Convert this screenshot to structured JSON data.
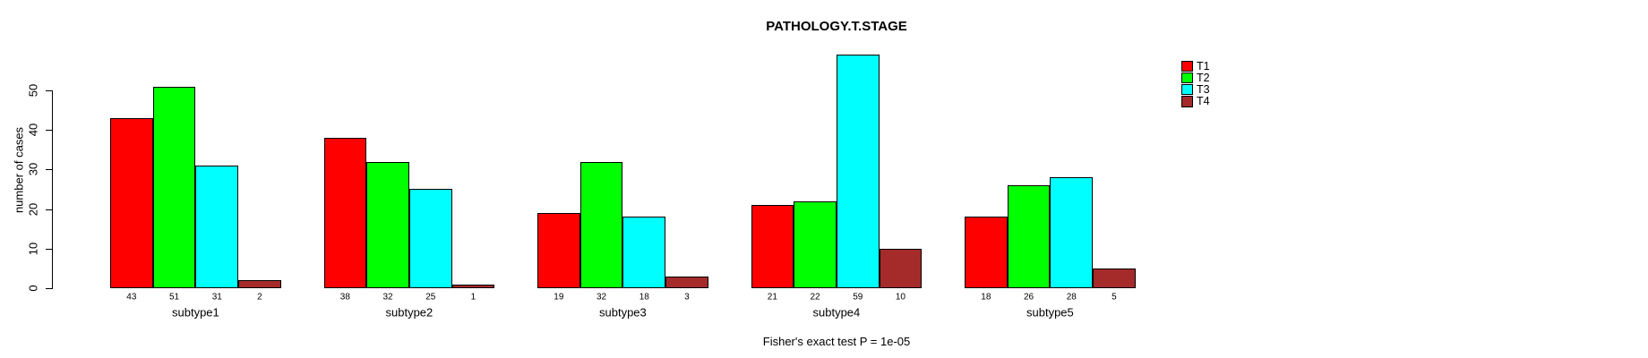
{
  "chart_data": {
    "type": "bar",
    "title": "PATHOLOGY.T.STAGE",
    "ylabel": "number of cases",
    "xlabel": "",
    "annotation": "Fisher's exact test P = 1e-05",
    "categories": [
      "subtype1",
      "subtype2",
      "subtype3",
      "subtype4",
      "subtype5"
    ],
    "series": [
      {
        "name": "T1",
        "color": "#ff0000",
        "values": [
          43,
          38,
          19,
          21,
          18
        ]
      },
      {
        "name": "T2",
        "color": "#00ff00",
        "values": [
          51,
          32,
          32,
          22,
          26
        ]
      },
      {
        "name": "T3",
        "color": "#00ffff",
        "values": [
          31,
          25,
          18,
          59,
          28
        ]
      },
      {
        "name": "T4",
        "color": "#a52a2a",
        "values": [
          2,
          1,
          3,
          10,
          5
        ]
      }
    ],
    "y_ticks": [
      0,
      10,
      20,
      30,
      40,
      50
    ],
    "ylim": [
      0,
      59
    ],
    "grid": false,
    "legend_position": "right",
    "value_labels_shown": true,
    "colors": {
      "bar_border": "#000000",
      "axis": "#000000",
      "text": "#000000",
      "background": "#ffffff"
    }
  }
}
